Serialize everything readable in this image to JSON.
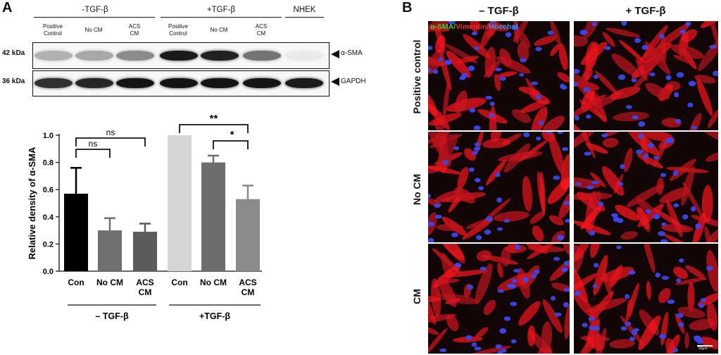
{
  "panel_a": {
    "letter": "A",
    "blot": {
      "groups": [
        "-TGF-β",
        "+TGF-β",
        "NHEK"
      ],
      "lanes": [
        [
          "Positive",
          "Control"
        ],
        [
          "No CM"
        ],
        [
          "ACS",
          "CM"
        ],
        [
          "Positive",
          "Control"
        ],
        [
          "No CM"
        ],
        [
          "ACS",
          "CM"
        ],
        []
      ],
      "rows": [
        {
          "kda": "42 kDa",
          "protein": "α-SMA",
          "intensity": [
            0.28,
            0.32,
            0.45,
            0.95,
            0.92,
            0.55,
            0.03
          ]
        },
        {
          "kda": "36 kDa",
          "protein": "GAPDH",
          "intensity": [
            0.85,
            0.9,
            0.98,
            0.98,
            0.98,
            0.98,
            0.95
          ]
        }
      ]
    },
    "chart_data": {
      "type": "bar",
      "ylabel": "Relative density of α-SMA",
      "ylim": [
        0,
        1.0
      ],
      "yticks": [
        "0.0",
        "0.2",
        "0.4",
        "0.6",
        "0.8",
        "1.0"
      ],
      "categories": [
        "Con",
        "No CM",
        "ACS CM",
        "Con",
        "No CM",
        "ACS CM"
      ],
      "category_lines": [
        [
          "Con"
        ],
        [
          "No CM"
        ],
        [
          "ACS",
          "CM"
        ],
        [
          "Con"
        ],
        [
          "No CM"
        ],
        [
          "ACS",
          "CM"
        ]
      ],
      "values": [
        0.57,
        0.3,
        0.29,
        1.0,
        0.8,
        0.53
      ],
      "errors": [
        0.19,
        0.09,
        0.06,
        0.0,
        0.05,
        0.1
      ],
      "colors": [
        "#000000",
        "#707070",
        "#5c5c5c",
        "#d6d6d6",
        "#6d6d6d",
        "#8a8a8a"
      ],
      "groups": [
        "– TGF-β",
        "+TGF-β"
      ],
      "significance": [
        {
          "from": 0,
          "to": 1,
          "label": "ns"
        },
        {
          "from": 0,
          "to": 2,
          "label": "ns"
        },
        {
          "from": 3,
          "to": 5,
          "label": "**"
        },
        {
          "from": 4,
          "to": 5,
          "label": "*"
        }
      ]
    }
  },
  "panel_b": {
    "letter": "B",
    "col_headers": [
      "– TGF-β",
      "+ TGF-β"
    ],
    "row_headers": [
      "Positive control",
      "No CM",
      "CM"
    ],
    "legend": [
      {
        "text": "α-SMA",
        "color": "#33d13a"
      },
      {
        "text": "/",
        "color": "#33d13a"
      },
      {
        "text": "Vimentin",
        "color": "#ff2a2a"
      },
      {
        "text": "/",
        "color": "#ff2a2a"
      },
      {
        "text": "Hoechst",
        "color": "#2b9dff"
      }
    ],
    "scale_label": "50μm",
    "green_signal": [
      [
        0,
        0.0,
        0.95
      ],
      [
        0,
        0.0,
        0.95
      ],
      [
        0,
        0.0,
        0.8
      ]
    ]
  }
}
